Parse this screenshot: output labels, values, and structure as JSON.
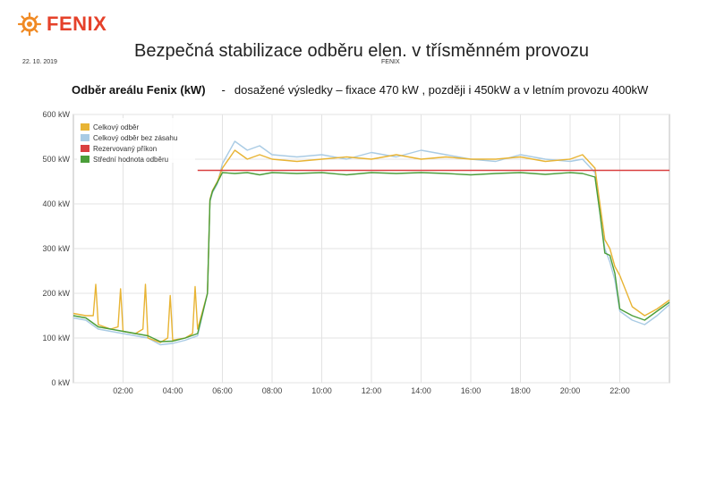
{
  "header": {
    "logo_text": "FENIX",
    "title": "Bezpečná stabilizace odběru elen. v třísměnném provozu",
    "date": "22. 10. 2019",
    "footer_label": "FENIX"
  },
  "chart_data": {
    "type": "line",
    "title": "Odběr areálu Fenix (kW)",
    "subtitle": "dosažené výsledky – fixace 470 kW , později i 450kW  a v letním provozu 400kW",
    "xlabel": "",
    "ylabel": "",
    "xlim": [
      0,
      24
    ],
    "ylim": [
      0,
      600
    ],
    "x_ticks": [
      "02:00",
      "04:00",
      "06:00",
      "08:00",
      "10:00",
      "12:00",
      "14:00",
      "16:00",
      "18:00",
      "20:00",
      "22:00"
    ],
    "x_tick_hours": [
      2,
      4,
      6,
      8,
      10,
      12,
      14,
      16,
      18,
      20,
      22
    ],
    "y_ticks": [
      "0 kW",
      "100 kW",
      "200 kW",
      "300 kW",
      "400 kW",
      "500 kW",
      "600 kW"
    ],
    "y_tick_values": [
      0,
      100,
      200,
      300,
      400,
      500,
      600
    ],
    "grid": true,
    "legend_position": "top-left",
    "series": [
      {
        "name": "Celkový odběr",
        "color": "#e8b434",
        "x": [
          0,
          0.5,
          0.8,
          0.9,
          1.0,
          1.5,
          1.8,
          1.9,
          2.0,
          2.5,
          2.8,
          2.9,
          3.0,
          3.5,
          3.8,
          3.9,
          4.0,
          4.5,
          4.8,
          4.9,
          5.0,
          5.4,
          5.5,
          5.6,
          5.8,
          6.0,
          6.5,
          7.0,
          7.5,
          8.0,
          9.0,
          10.0,
          11.0,
          12.0,
          13.0,
          14.0,
          15.0,
          16.0,
          17.0,
          18.0,
          19.0,
          20.0,
          20.5,
          21.0,
          21.2,
          21.4,
          21.6,
          21.8,
          22.0,
          22.5,
          23.0,
          23.5,
          24.0
        ],
        "values": [
          155,
          150,
          150,
          220,
          130,
          120,
          125,
          210,
          115,
          110,
          120,
          220,
          100,
          90,
          100,
          195,
          95,
          100,
          110,
          215,
          120,
          200,
          410,
          430,
          450,
          480,
          520,
          500,
          510,
          500,
          495,
          500,
          505,
          500,
          510,
          500,
          505,
          500,
          500,
          505,
          495,
          500,
          510,
          480,
          400,
          320,
          300,
          260,
          240,
          170,
          150,
          165,
          185
        ]
      },
      {
        "name": "Celkový odběr bez zásahu",
        "color": "#a9cbe4",
        "x": [
          0,
          0.5,
          1.0,
          1.5,
          2.0,
          2.5,
          3.0,
          3.5,
          4.0,
          4.5,
          5.0,
          5.4,
          5.5,
          5.6,
          5.8,
          6.0,
          6.5,
          7.0,
          7.5,
          8.0,
          9.0,
          10.0,
          11.0,
          12.0,
          13.0,
          14.0,
          15.0,
          16.0,
          17.0,
          18.0,
          19.0,
          20.0,
          20.5,
          21.0,
          21.2,
          21.4,
          21.6,
          21.8,
          22.0,
          22.5,
          23.0,
          23.5,
          24.0
        ],
        "values": [
          145,
          140,
          120,
          115,
          110,
          105,
          100,
          85,
          88,
          95,
          105,
          200,
          405,
          425,
          445,
          490,
          540,
          520,
          530,
          510,
          505,
          510,
          500,
          515,
          505,
          520,
          510,
          500,
          495,
          510,
          500,
          495,
          500,
          470,
          380,
          300,
          270,
          230,
          160,
          140,
          130,
          150,
          175
        ]
      },
      {
        "name": "Rezervovaný příkon",
        "color": "#d94040",
        "x": [
          5.0,
          24.0
        ],
        "values": [
          475,
          475
        ]
      },
      {
        "name": "Střední hodnota odběru",
        "color": "#4b9e3a",
        "x": [
          0,
          0.5,
          1.0,
          1.5,
          2.0,
          2.5,
          3.0,
          3.5,
          4.0,
          4.5,
          5.0,
          5.4,
          5.5,
          5.6,
          5.8,
          6.0,
          6.5,
          7.0,
          7.5,
          8.0,
          9.0,
          10.0,
          11.0,
          12.0,
          13.0,
          14.0,
          15.0,
          16.0,
          17.0,
          18.0,
          19.0,
          20.0,
          20.5,
          21.0,
          21.2,
          21.4,
          21.6,
          21.8,
          22.0,
          22.5,
          23.0,
          23.5,
          24.0
        ],
        "values": [
          150,
          145,
          125,
          120,
          115,
          110,
          105,
          92,
          93,
          100,
          110,
          200,
          408,
          428,
          448,
          470,
          468,
          470,
          465,
          470,
          468,
          470,
          465,
          470,
          468,
          470,
          468,
          465,
          468,
          470,
          466,
          470,
          468,
          460,
          380,
          290,
          285,
          245,
          165,
          150,
          140,
          160,
          180
        ]
      }
    ]
  }
}
